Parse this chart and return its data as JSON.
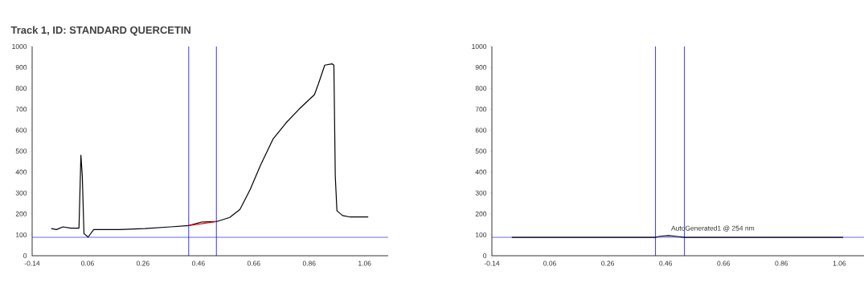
{
  "chart_data": [
    {
      "type": "line",
      "title": "Track 1, ID: STANDARD QUERCETIN",
      "xlim": [
        -0.14,
        1.145
      ],
      "ylim": [
        0,
        1000
      ],
      "xticks": [
        -0.14,
        0.06,
        0.26,
        0.46,
        0.66,
        0.86,
        1.06
      ],
      "yticks": [
        0,
        100,
        200,
        300,
        400,
        500,
        600,
        700,
        800,
        900,
        1000
      ],
      "series": [
        {
          "color": "#000000",
          "x": [
            -0.071,
            -0.052,
            -0.029,
            0.0,
            0.029,
            0.036,
            0.041,
            0.047,
            0.062,
            0.082,
            0.175,
            0.267,
            0.36,
            0.425,
            0.471,
            0.525,
            0.573,
            0.61,
            0.647,
            0.684,
            0.73,
            0.777,
            0.823,
            0.879,
            0.893,
            0.916,
            0.943,
            0.949,
            0.954,
            0.96,
            0.98,
            1.008,
            1.073
          ],
          "values": [
            130,
            125,
            138,
            132,
            132,
            480,
            381,
            106,
            89,
            125,
            125,
            130,
            138,
            144,
            161,
            163,
            183,
            221,
            317,
            432,
            559,
            636,
            700,
            770,
            821,
            911,
            917,
            911,
            381,
            215,
            192,
            185,
            185
          ]
        },
        {
          "color": "#ff0000",
          "x": [
            0.425,
            0.525
          ],
          "values": [
            144,
            163
          ]
        }
      ],
      "ref_lines": [
        {
          "axis": "x",
          "value": 0.425,
          "color": "#0000ff"
        },
        {
          "axis": "x",
          "value": 0.525,
          "color": "#0000ff"
        },
        {
          "axis": "y",
          "value": 88,
          "color": "#0000ff"
        }
      ]
    },
    {
      "type": "line",
      "xlim": [
        -0.14,
        1.145
      ],
      "ylim": [
        0,
        1000
      ],
      "xticks": [
        -0.14,
        0.06,
        0.26,
        0.46,
        0.66,
        0.86,
        1.06
      ],
      "yticks": [
        0,
        100,
        200,
        300,
        400,
        500,
        600,
        700,
        800,
        900,
        1000
      ],
      "annotations": [
        {
          "text": "AutoGenerated1 @ 254 nm",
          "x": 0.47,
          "y": 96
        }
      ],
      "ref_lines": [
        {
          "axis": "x",
          "value": 0.425,
          "color": "#0000ff"
        },
        {
          "axis": "x",
          "value": 0.525,
          "color": "#0000ff"
        },
        {
          "axis": "y",
          "value": 88,
          "color": "#0000ff"
        }
      ],
      "series": [
        {
          "color": "#000000",
          "x": [
            -0.071,
            0.425,
            0.44,
            0.47,
            0.5,
            0.525,
            1.073
          ],
          "values": [
            88,
            88,
            93,
            96,
            92,
            88,
            88
          ]
        }
      ]
    }
  ]
}
